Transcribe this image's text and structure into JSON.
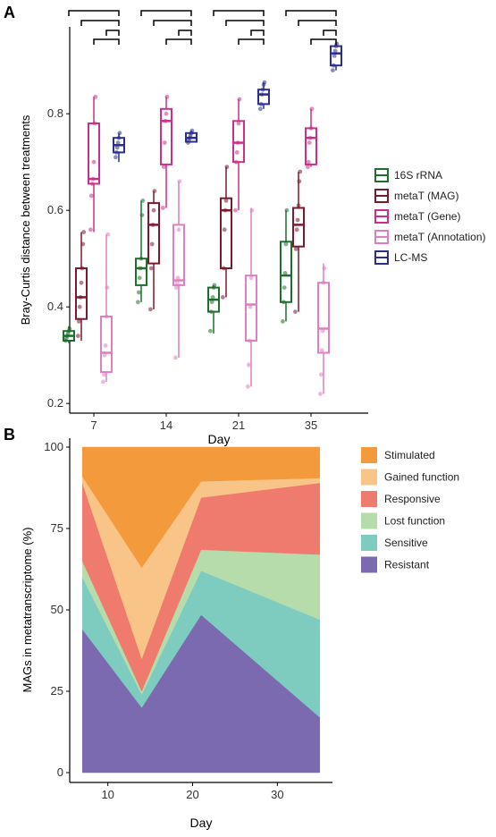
{
  "panels": {
    "a_label": "A",
    "b_label": "B"
  },
  "chart_data": [
    {
      "type": "box",
      "panel": "A",
      "xlabel": "Day",
      "ylabel": "Bray-Curtis distance between treatments",
      "categories": [
        "7",
        "14",
        "21",
        "35"
      ],
      "yticks": [
        "0.2",
        "0.4",
        "0.6",
        "0.8"
      ],
      "ylim": [
        0.18,
        0.98
      ],
      "legend_position": "right",
      "significance_brackets": true,
      "series": [
        {
          "name": "16S rRNA",
          "color": "#1f6e2e",
          "boxes": [
            {
              "min": 0.325,
              "q1": 0.33,
              "median": 0.34,
              "q3": 0.35,
              "max": 0.36,
              "points": [
                0.33,
                0.335,
                0.34,
                0.345,
                0.35,
                0.355
              ]
            },
            {
              "min": 0.41,
              "q1": 0.445,
              "median": 0.48,
              "q3": 0.5,
              "max": 0.62,
              "points": [
                0.41,
                0.43,
                0.46,
                0.48,
                0.5,
                0.59,
                0.62
              ]
            },
            {
              "min": 0.345,
              "q1": 0.39,
              "median": 0.415,
              "q3": 0.44,
              "max": 0.445,
              "points": [
                0.35,
                0.39,
                0.41,
                0.42,
                0.44,
                0.445
              ]
            },
            {
              "min": 0.37,
              "q1": 0.41,
              "median": 0.465,
              "q3": 0.535,
              "max": 0.6,
              "points": [
                0.37,
                0.41,
                0.44,
                0.47,
                0.53,
                0.6
              ]
            }
          ]
        },
        {
          "name": "metaT (MAG)",
          "color": "#7a1a2e",
          "boxes": [
            {
              "min": 0.33,
              "q1": 0.375,
              "median": 0.42,
              "q3": 0.48,
              "max": 0.555,
              "points": [
                0.34,
                0.37,
                0.4,
                0.42,
                0.45,
                0.48,
                0.53,
                0.555
              ]
            },
            {
              "min": 0.395,
              "q1": 0.49,
              "median": 0.57,
              "q3": 0.615,
              "max": 0.64,
              "points": [
                0.395,
                0.48,
                0.53,
                0.57,
                0.6,
                0.64
              ]
            },
            {
              "min": 0.42,
              "q1": 0.48,
              "median": 0.6,
              "q3": 0.625,
              "max": 0.69,
              "points": [
                0.42,
                0.48,
                0.56,
                0.6,
                0.62,
                0.69
              ]
            },
            {
              "min": 0.39,
              "q1": 0.525,
              "median": 0.57,
              "q3": 0.605,
              "max": 0.68,
              "points": [
                0.39,
                0.52,
                0.56,
                0.58,
                0.61,
                0.66,
                0.68
              ]
            }
          ]
        },
        {
          "name": "metaT (Gene)",
          "color": "#c9308a",
          "boxes": [
            {
              "min": 0.555,
              "q1": 0.655,
              "median": 0.665,
              "q3": 0.78,
              "max": 0.835,
              "points": [
                0.56,
                0.63,
                0.655,
                0.665,
                0.7,
                0.78,
                0.835
              ]
            },
            {
              "min": 0.605,
              "q1": 0.695,
              "median": 0.785,
              "q3": 0.81,
              "max": 0.835,
              "points": [
                0.605,
                0.69,
                0.74,
                0.785,
                0.8,
                0.835
              ]
            },
            {
              "min": 0.6,
              "q1": 0.7,
              "median": 0.74,
              "q3": 0.785,
              "max": 0.83,
              "points": [
                0.6,
                0.7,
                0.72,
                0.74,
                0.78,
                0.83
              ]
            },
            {
              "min": 0.69,
              "q1": 0.695,
              "median": 0.75,
              "q3": 0.77,
              "max": 0.81,
              "points": [
                0.69,
                0.7,
                0.74,
                0.75,
                0.77,
                0.81
              ]
            }
          ]
        },
        {
          "name": "metaT (Annotation)",
          "color": "#df7ec1",
          "boxes": [
            {
              "min": 0.245,
              "q1": 0.265,
              "median": 0.305,
              "q3": 0.38,
              "max": 0.55,
              "points": [
                0.245,
                0.26,
                0.3,
                0.32,
                0.38,
                0.44,
                0.55
              ]
            },
            {
              "min": 0.295,
              "q1": 0.445,
              "median": 0.455,
              "q3": 0.57,
              "max": 0.66,
              "points": [
                0.295,
                0.44,
                0.45,
                0.46,
                0.56,
                0.66
              ]
            },
            {
              "min": 0.235,
              "q1": 0.33,
              "median": 0.405,
              "q3": 0.465,
              "max": 0.605,
              "points": [
                0.235,
                0.28,
                0.33,
                0.4,
                0.46,
                0.6
              ]
            },
            {
              "min": 0.22,
              "q1": 0.305,
              "median": 0.355,
              "q3": 0.45,
              "max": 0.49,
              "points": [
                0.22,
                0.26,
                0.31,
                0.35,
                0.45,
                0.48
              ]
            }
          ]
        },
        {
          "name": "LC-MS",
          "color": "#2b2e8c",
          "boxes": [
            {
              "min": 0.7,
              "q1": 0.72,
              "median": 0.735,
              "q3": 0.75,
              "max": 0.76,
              "points": [
                0.71,
                0.72,
                0.73,
                0.74,
                0.75,
                0.76
              ]
            },
            {
              "min": 0.74,
              "q1": 0.742,
              "median": 0.75,
              "q3": 0.76,
              "max": 0.765,
              "points": [
                0.74,
                0.745,
                0.75,
                0.755,
                0.76,
                0.765
              ]
            },
            {
              "min": 0.81,
              "q1": 0.82,
              "median": 0.84,
              "q3": 0.85,
              "max": 0.865,
              "points": [
                0.81,
                0.82,
                0.84,
                0.85,
                0.86,
                0.865
              ]
            },
            {
              "min": 0.89,
              "q1": 0.9,
              "median": 0.925,
              "q3": 0.94,
              "max": 0.945,
              "points": [
                0.89,
                0.9,
                0.92,
                0.93,
                0.94,
                0.945
              ]
            }
          ]
        }
      ]
    },
    {
      "type": "area",
      "panel": "B",
      "stacked": true,
      "xlabel": "Day",
      "ylabel": "MAGs in metatranscriptome (%)",
      "x": [
        7,
        14,
        21,
        35
      ],
      "xticks": [
        "10",
        "20",
        "30"
      ],
      "yticks": [
        "0",
        "25",
        "50",
        "75",
        "100"
      ],
      "xlim": [
        5.5,
        36.5
      ],
      "ylim": [
        0,
        100
      ],
      "legend_position": "right",
      "series": [
        {
          "name": "Resistant",
          "color": "#7b6aaf",
          "values": [
            44,
            20,
            48.5,
            17
          ]
        },
        {
          "name": "Sensitive",
          "color": "#7ecbc0",
          "values": [
            16,
            4,
            13.5,
            30
          ]
        },
        {
          "name": "Lost function",
          "color": "#b7dcab",
          "values": [
            5,
            1,
            6.5,
            20
          ]
        },
        {
          "name": "Responsive",
          "color": "#ef7b6e",
          "values": [
            24,
            10,
            16,
            22
          ]
        },
        {
          "name": "Gained function",
          "color": "#f9c488",
          "values": [
            2,
            28,
            5,
            1.5
          ]
        },
        {
          "name": "Stimulated",
          "color": "#f39a3c",
          "values": [
            9,
            37,
            10.5,
            9.5
          ]
        }
      ],
      "legend_order": [
        "Stimulated",
        "Gained function",
        "Responsive",
        "Lost function",
        "Sensitive",
        "Resistant"
      ]
    }
  ]
}
